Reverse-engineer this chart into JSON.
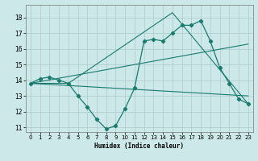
{
  "xlabel": "Humidex (Indice chaleur)",
  "bg_color": "#cce8e8",
  "line_color": "#1a7a6e",
  "grid_color": "#aacccc",
  "xlim": [
    -0.5,
    23.5
  ],
  "ylim": [
    10.7,
    18.8
  ],
  "yticks": [
    11,
    12,
    13,
    14,
    15,
    16,
    17,
    18
  ],
  "xticks": [
    0,
    1,
    2,
    3,
    4,
    5,
    6,
    7,
    8,
    9,
    10,
    11,
    12,
    13,
    14,
    15,
    16,
    17,
    18,
    19,
    20,
    21,
    22,
    23
  ],
  "line1_x": [
    0,
    1,
    2,
    3,
    4,
    5,
    6,
    7,
    8,
    9,
    10,
    11,
    12,
    13,
    14,
    15,
    16,
    17,
    18,
    19,
    20,
    21,
    22,
    23
  ],
  "line1_y": [
    13.8,
    14.1,
    14.2,
    14.0,
    13.8,
    13.0,
    12.3,
    11.5,
    10.9,
    11.1,
    12.2,
    13.5,
    16.5,
    16.6,
    16.5,
    17.0,
    17.5,
    17.5,
    17.8,
    16.5,
    14.8,
    13.8,
    12.8,
    12.5
  ],
  "line2_x": [
    0,
    4,
    15,
    23
  ],
  "line2_y": [
    13.8,
    13.8,
    18.3,
    12.5
  ],
  "line3_x": [
    0,
    23
  ],
  "line3_y": [
    13.8,
    13.0
  ],
  "line4_x": [
    0,
    23
  ],
  "line4_y": [
    13.8,
    16.3
  ]
}
